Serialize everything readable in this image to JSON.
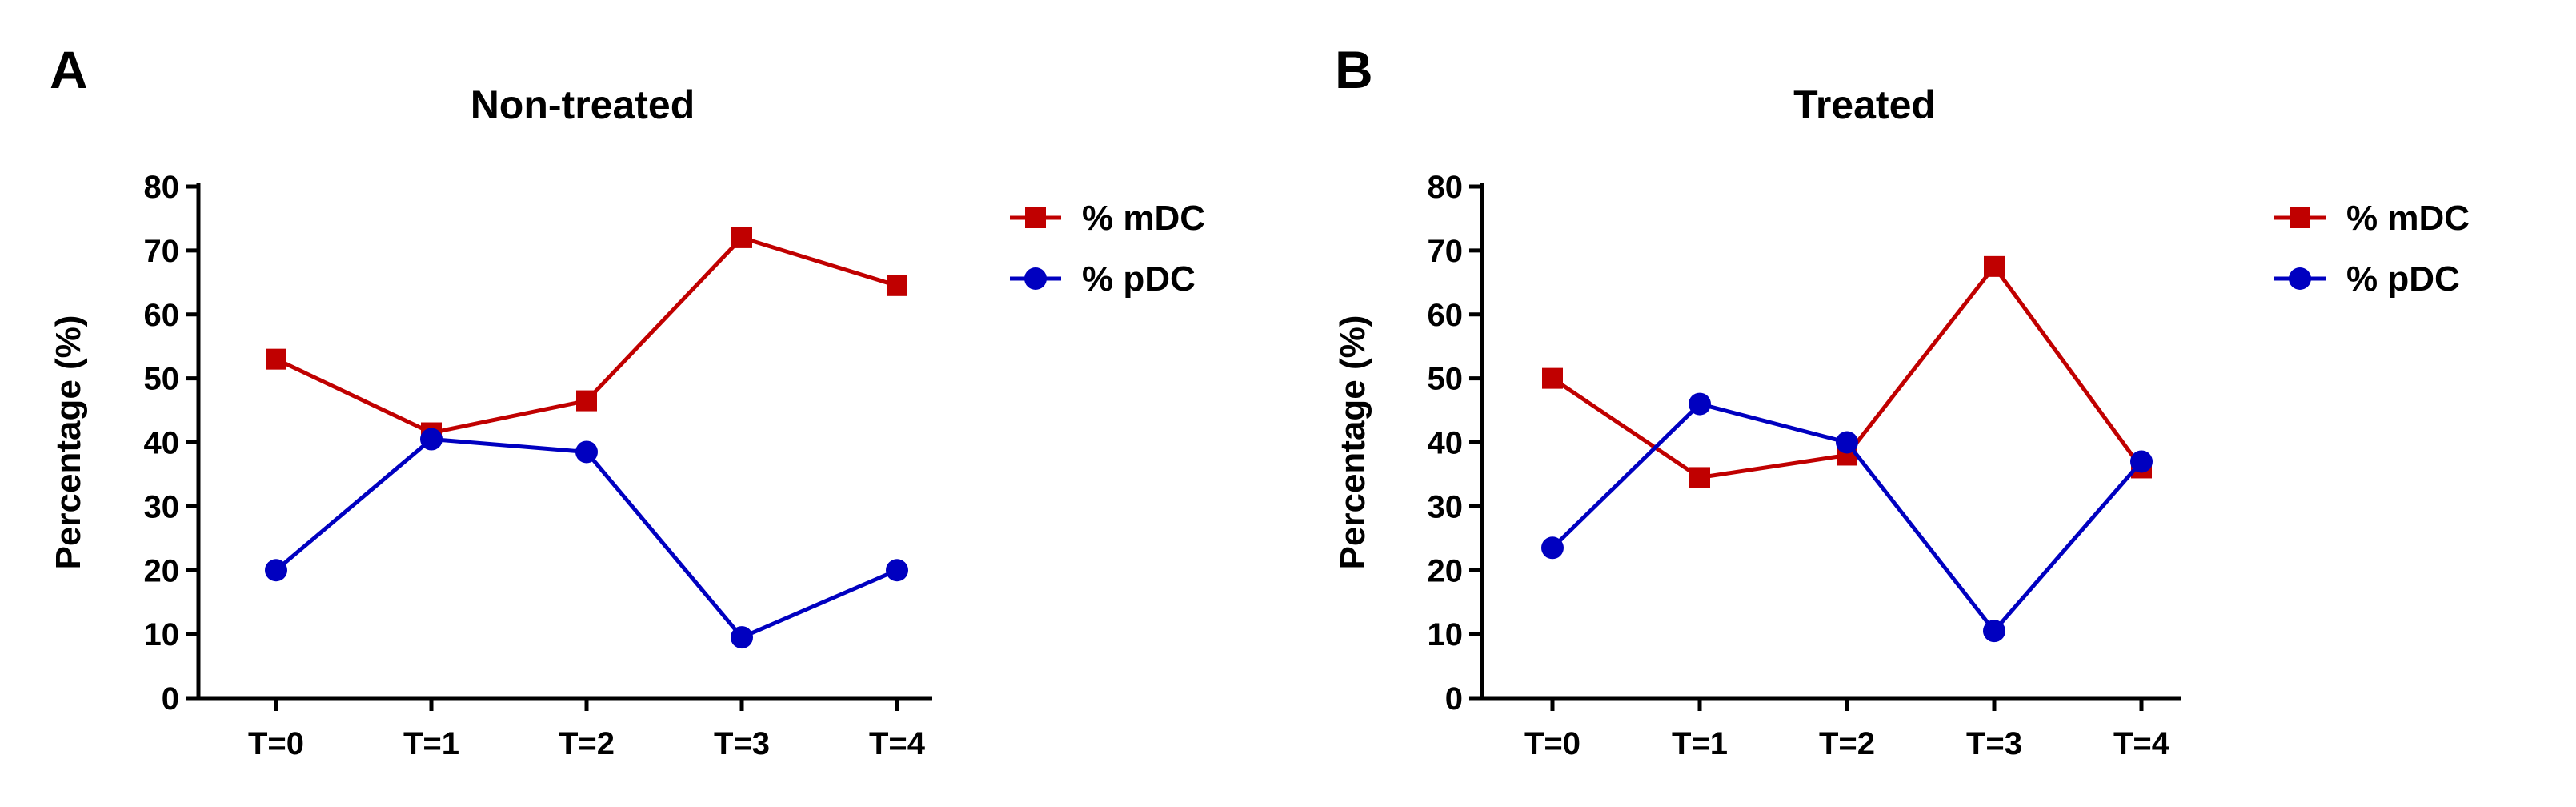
{
  "chart_data": [
    {
      "type": "line",
      "panel": "A",
      "title": "Non-treated",
      "xlabel": "",
      "ylabel": "Percentage (%)",
      "categories": [
        "T=0",
        "T=1",
        "T=2",
        "T=3",
        "T=4"
      ],
      "ylim": [
        0,
        80
      ],
      "yticks": [
        "0",
        "10",
        "20",
        "30",
        "40",
        "50",
        "60",
        "70",
        "80"
      ],
      "legend_position": "right",
      "series": [
        {
          "name": "% mDC",
          "marker": "square",
          "color": "#c00000",
          "values": [
            53,
            41.5,
            46.5,
            72,
            64.5
          ]
        },
        {
          "name": "% pDC",
          "marker": "circle",
          "color": "#0000c0",
          "values": [
            20,
            40.5,
            38.5,
            9.5,
            20
          ]
        }
      ]
    },
    {
      "type": "line",
      "panel": "B",
      "title": "Treated",
      "xlabel": "",
      "ylabel": "Percentage (%)",
      "categories": [
        "T=0",
        "T=1",
        "T=2",
        "T=3",
        "T=4"
      ],
      "ylim": [
        0,
        80
      ],
      "yticks": [
        "0",
        "10",
        "20",
        "30",
        "40",
        "50",
        "60",
        "70",
        "80"
      ],
      "legend_position": "right",
      "series": [
        {
          "name": "% mDC",
          "marker": "square",
          "color": "#c00000",
          "values": [
            50,
            34.5,
            38,
            67.5,
            36
          ]
        },
        {
          "name": "% pDC",
          "marker": "circle",
          "color": "#0000c0",
          "values": [
            23.5,
            46,
            40,
            10.5,
            37
          ]
        }
      ]
    }
  ]
}
